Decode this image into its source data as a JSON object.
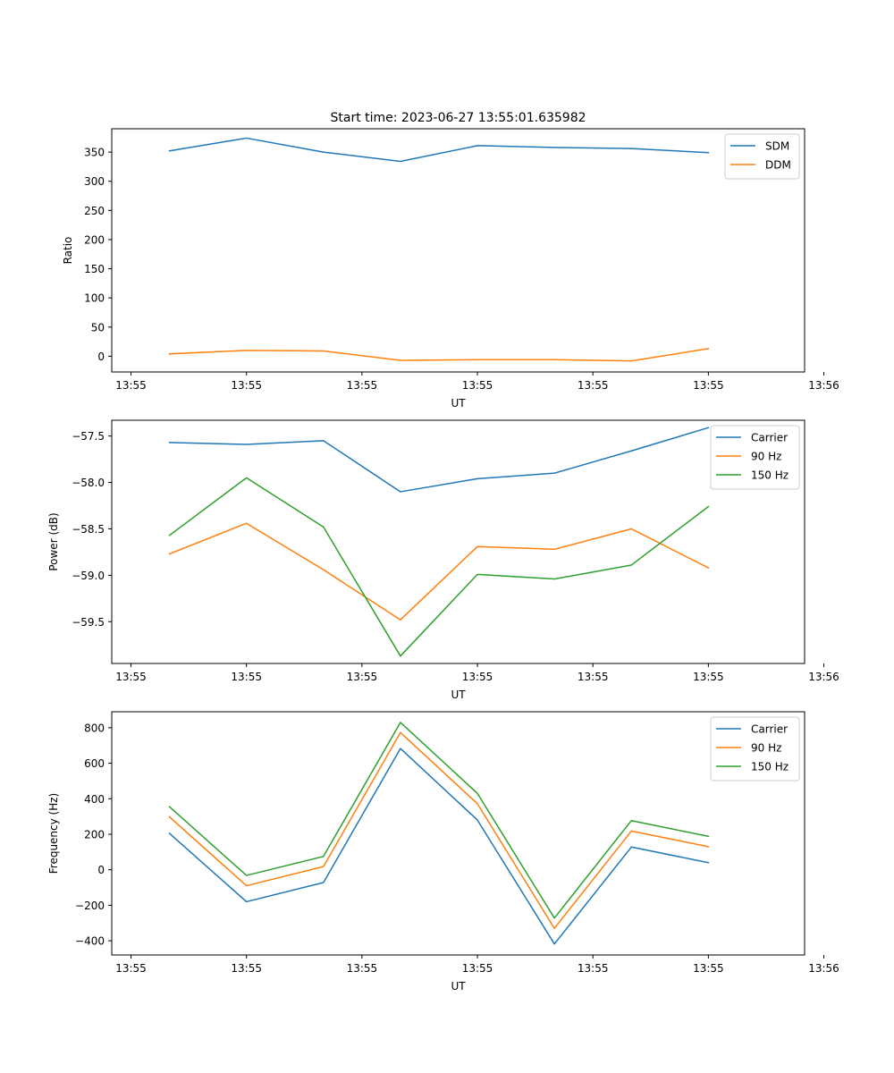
{
  "figure": {
    "title": "Start time: 2023-06-27 13:55:01.635982"
  },
  "colors": {
    "blue": "#1f77b4",
    "orange": "#ff7f0e",
    "green": "#2ca02c"
  },
  "chart_data": [
    {
      "type": "line",
      "title": "Start time: 2023-06-27 13:55:01.635982",
      "xlabel": "UT",
      "ylabel": "Ratio",
      "xlim": [
        -0.5,
        8.5
      ],
      "ylim": [
        -27,
        390
      ],
      "x": [
        0.25,
        1.25,
        2.25,
        3.25,
        4.25,
        5.25,
        6.25,
        7.25
      ],
      "x_ticks": [
        -0.25,
        1.25,
        2.75,
        4.25,
        5.75,
        7.25,
        8.75
      ],
      "x_tick_labels": [
        "13:55",
        "13:55",
        "13:55",
        "13:55",
        "13:55",
        "13:55",
        "13:56"
      ],
      "y_ticks": [
        0,
        50,
        100,
        150,
        200,
        250,
        300,
        350
      ],
      "y_tick_labels": [
        "0",
        "50",
        "100",
        "150",
        "200",
        "250",
        "300",
        "350"
      ],
      "legend": "upper right",
      "series": [
        {
          "name": "SDM",
          "color": "blue",
          "values": [
            352,
            374,
            350,
            334,
            361,
            358,
            356,
            349
          ]
        },
        {
          "name": "DDM",
          "color": "orange",
          "values": [
            4,
            10,
            9,
            -7,
            -6,
            -6,
            -8,
            13
          ]
        }
      ]
    },
    {
      "type": "line",
      "xlabel": "UT",
      "ylabel": "Power (dB)",
      "xlim": [
        -0.5,
        8.5
      ],
      "ylim": [
        -59.95,
        -57.33
      ],
      "x": [
        0.25,
        1.25,
        2.25,
        3.25,
        4.25,
        5.25,
        6.25,
        7.25
      ],
      "x_ticks": [
        -0.25,
        1.25,
        2.75,
        4.25,
        5.75,
        7.25,
        8.75
      ],
      "x_tick_labels": [
        "13:55",
        "13:55",
        "13:55",
        "13:55",
        "13:55",
        "13:55",
        "13:56"
      ],
      "y_ticks": [
        -57.5,
        -58.0,
        -58.5,
        -59.0,
        -59.5
      ],
      "y_tick_labels": [
        "−57.5",
        "−58.0",
        "−58.5",
        "−59.0",
        "−59.5"
      ],
      "legend": "upper right",
      "series": [
        {
          "name": "Carrier",
          "color": "blue",
          "values": [
            -57.57,
            -57.59,
            -57.55,
            -58.1,
            -57.96,
            -57.9,
            -57.66,
            -57.41
          ]
        },
        {
          "name": "90 Hz",
          "color": "orange",
          "values": [
            -58.77,
            -58.44,
            -58.94,
            -59.48,
            -58.69,
            -58.72,
            -58.5,
            -58.92
          ]
        },
        {
          "name": "150 Hz",
          "color": "green",
          "values": [
            -58.57,
            -57.95,
            -58.48,
            -59.87,
            -58.99,
            -59.04,
            -58.89,
            -58.26
          ]
        }
      ]
    },
    {
      "type": "line",
      "xlabel": "UT",
      "ylabel": "Frequency (Hz)",
      "xlim": [
        -0.5,
        8.5
      ],
      "ylim": [
        -480,
        890
      ],
      "x": [
        0.25,
        1.25,
        2.25,
        3.25,
        4.25,
        5.25,
        6.25,
        7.25
      ],
      "x_ticks": [
        -0.25,
        1.25,
        2.75,
        4.25,
        5.75,
        7.25,
        8.75
      ],
      "x_tick_labels": [
        "13:55",
        "13:55",
        "13:55",
        "13:55",
        "13:55",
        "13:55",
        "13:56"
      ],
      "y_ticks": [
        -400,
        -200,
        0,
        200,
        400,
        600,
        800
      ],
      "y_tick_labels": [
        "−400",
        "−200",
        "0",
        "200",
        "400",
        "600",
        "800"
      ],
      "legend": "upper right",
      "series": [
        {
          "name": "Carrier",
          "color": "blue",
          "values": [
            205,
            -180,
            -72,
            683,
            280,
            -418,
            128,
            40
          ]
        },
        {
          "name": "90 Hz",
          "color": "orange",
          "values": [
            298,
            -90,
            18,
            773,
            372,
            -330,
            218,
            130
          ]
        },
        {
          "name": "150 Hz",
          "color": "green",
          "values": [
            355,
            -32,
            75,
            830,
            430,
            -272,
            277,
            188
          ]
        }
      ]
    }
  ]
}
